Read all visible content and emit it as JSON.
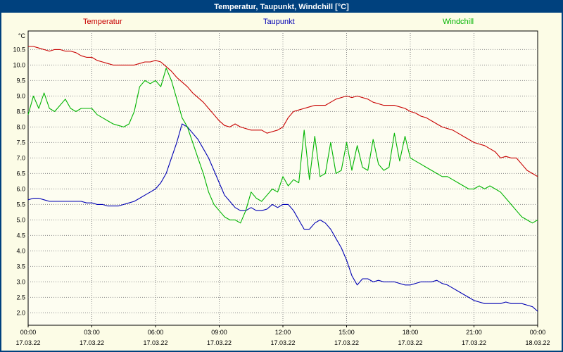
{
  "window": {
    "title": "Temperatur, Taupunkt, Windchill [°C]"
  },
  "colors": {
    "titlebar_bg": "#00417e",
    "titlebar_text": "#ffffff",
    "page_bg": "#fcfce6",
    "plot_bg": "#fdfdf1",
    "plot_border": "#000000",
    "grid": "#8a8a8a",
    "temperatur": "#c80000",
    "taupunkt": "#0000b4",
    "windchill": "#00b400"
  },
  "chart_data": {
    "type": "line",
    "title": "Temperatur, Taupunkt, Windchill [°C]",
    "ylabel": "°C",
    "ylim": [
      1.6,
      11.1
    ],
    "grid": "dotted",
    "legend_position": "top",
    "y_ticks": [
      "10.5",
      "10.0",
      "9.5",
      "9.0",
      "8.5",
      "8.0",
      "7.5",
      "7.0",
      "6.5",
      "6.0",
      "5.5",
      "5.0",
      "4.5",
      "4.0",
      "3.5",
      "3.0",
      "2.5",
      "2.0"
    ],
    "x_range_hours": [
      0,
      24
    ],
    "x_interval_hours": 0.25,
    "x_ticks": [
      {
        "hour": 0,
        "label": "00:00",
        "date": "17.03.22"
      },
      {
        "hour": 3,
        "label": "03:00",
        "date": "17.03.22"
      },
      {
        "hour": 6,
        "label": "06:00",
        "date": "17.03.22"
      },
      {
        "hour": 9,
        "label": "09:00",
        "date": "17.03.22"
      },
      {
        "hour": 12,
        "label": "12:00",
        "date": "17.03.22"
      },
      {
        "hour": 15,
        "label": "15:00",
        "date": "17.03.22"
      },
      {
        "hour": 18,
        "label": "18:00",
        "date": "17.03.22"
      },
      {
        "hour": 21,
        "label": "21:00",
        "date": "17.03.22"
      },
      {
        "hour": 24,
        "label": "00:00",
        "date": "18.03.22"
      }
    ],
    "series": [
      {
        "name": "Temperatur",
        "color": "#c80000",
        "values": [
          10.6,
          10.6,
          10.55,
          10.5,
          10.45,
          10.5,
          10.5,
          10.45,
          10.45,
          10.4,
          10.3,
          10.25,
          10.25,
          10.15,
          10.1,
          10.05,
          10.0,
          10.0,
          10.0,
          10.0,
          10.0,
          10.05,
          10.1,
          10.1,
          10.15,
          10.1,
          9.95,
          9.8,
          9.6,
          9.45,
          9.3,
          9.1,
          8.95,
          8.8,
          8.6,
          8.4,
          8.2,
          8.05,
          8.0,
          8.1,
          8.0,
          7.95,
          7.9,
          7.9,
          7.9,
          7.8,
          7.85,
          7.9,
          8.0,
          8.3,
          8.5,
          8.55,
          8.6,
          8.65,
          8.7,
          8.7,
          8.7,
          8.8,
          8.9,
          8.95,
          9.0,
          8.95,
          9.0,
          8.95,
          8.9,
          8.8,
          8.75,
          8.7,
          8.7,
          8.7,
          8.65,
          8.6,
          8.5,
          8.45,
          8.35,
          8.3,
          8.2,
          8.1,
          8.0,
          7.95,
          7.9,
          7.8,
          7.7,
          7.6,
          7.5,
          7.45,
          7.4,
          7.3,
          7.2,
          7.0,
          7.05,
          7.0,
          7.0,
          6.8,
          6.6,
          6.5,
          6.4
        ]
      },
      {
        "name": "Taupunkt",
        "color": "#0000b4",
        "values": [
          5.65,
          5.7,
          5.7,
          5.65,
          5.6,
          5.6,
          5.6,
          5.6,
          5.6,
          5.6,
          5.6,
          5.55,
          5.55,
          5.5,
          5.5,
          5.45,
          5.45,
          5.45,
          5.5,
          5.55,
          5.6,
          5.7,
          5.8,
          5.9,
          6.0,
          6.2,
          6.5,
          7.0,
          7.5,
          8.1,
          8.0,
          7.8,
          7.6,
          7.3,
          7.0,
          6.6,
          6.2,
          5.8,
          5.6,
          5.4,
          5.3,
          5.3,
          5.4,
          5.3,
          5.3,
          5.35,
          5.5,
          5.4,
          5.5,
          5.5,
          5.3,
          5.0,
          4.7,
          4.7,
          4.9,
          5.0,
          4.9,
          4.7,
          4.4,
          4.1,
          3.7,
          3.2,
          2.9,
          3.1,
          3.1,
          3.0,
          3.05,
          3.0,
          3.0,
          3.0,
          2.95,
          2.9,
          2.9,
          2.95,
          3.0,
          3.0,
          3.0,
          3.05,
          2.95,
          2.9,
          2.8,
          2.7,
          2.6,
          2.5,
          2.4,
          2.35,
          2.3,
          2.3,
          2.3,
          2.3,
          2.35,
          2.3,
          2.3,
          2.3,
          2.25,
          2.2,
          2.05
        ]
      },
      {
        "name": "Windchill",
        "color": "#00b400",
        "values": [
          8.4,
          9.0,
          8.6,
          9.1,
          8.6,
          8.5,
          8.7,
          8.9,
          8.6,
          8.5,
          8.6,
          8.6,
          8.6,
          8.4,
          8.3,
          8.2,
          8.1,
          8.05,
          8.0,
          8.1,
          8.5,
          9.3,
          9.5,
          9.4,
          9.5,
          9.3,
          9.9,
          9.5,
          8.9,
          8.3,
          8.0,
          7.5,
          7.0,
          6.5,
          5.9,
          5.5,
          5.3,
          5.1,
          5.0,
          5.0,
          4.9,
          5.3,
          5.9,
          5.7,
          5.6,
          5.8,
          6.0,
          5.9,
          6.4,
          6.1,
          6.3,
          6.2,
          7.9,
          6.3,
          7.7,
          6.4,
          6.5,
          7.5,
          6.5,
          6.6,
          7.5,
          6.6,
          7.4,
          6.7,
          6.6,
          7.6,
          6.8,
          6.6,
          6.7,
          7.8,
          6.9,
          7.7,
          7.0,
          6.9,
          6.8,
          6.7,
          6.6,
          6.5,
          6.4,
          6.4,
          6.3,
          6.2,
          6.1,
          6.0,
          6.0,
          6.1,
          6.0,
          6.1,
          6.0,
          5.9,
          5.7,
          5.5,
          5.3,
          5.1,
          5.0,
          4.9,
          5.0
        ]
      }
    ]
  }
}
